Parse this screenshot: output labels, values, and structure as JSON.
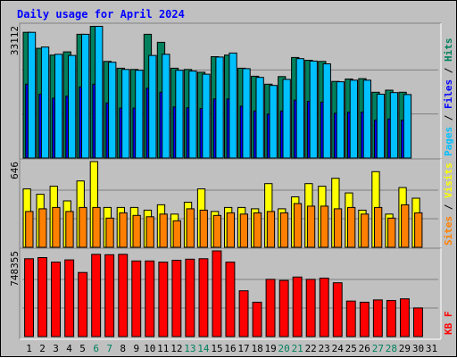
{
  "chart_data": {
    "type": "bar",
    "title": "Daily usage for April 2024",
    "categories": [
      "1",
      "2",
      "3",
      "4",
      "5",
      "6",
      "7",
      "8",
      "9",
      "10",
      "11",
      "12",
      "13",
      "14",
      "15",
      "16",
      "17",
      "18",
      "19",
      "20",
      "21",
      "22",
      "23",
      "24",
      "25",
      "26",
      "27",
      "28",
      "29",
      "30",
      "31"
    ],
    "weekend_days": [
      "6",
      "7",
      "13",
      "14",
      "20",
      "21",
      "27",
      "28"
    ],
    "colors": {
      "hits": "#00805c",
      "files": "#0000ff",
      "pages": "#00c0ff",
      "visits": "#ffff00",
      "sites": "#ff8000",
      "kbf": "#ff0000",
      "weekend_label": "#00805c",
      "weekday_label": "#000000",
      "title": "#0000ff",
      "background": "#c0c0c0"
    },
    "panels": [
      {
        "id": "hits-files-pages",
        "ymax_label": "33112",
        "ymax": 33112,
        "side_labels": [
          {
            "text": "Pages",
            "color": "#00c0ff"
          },
          {
            "text": " / ",
            "color": "#000000"
          },
          {
            "text": "Files",
            "color": "#0000ff"
          },
          {
            "text": " / ",
            "color": "#000000"
          },
          {
            "text": "Hits",
            "color": "#00805c"
          }
        ],
        "series": [
          {
            "name": "Hits",
            "color": "#00805c",
            "values": [
              31500,
              27500,
              25800,
              26600,
              31000,
              33000,
              24200,
              22500,
              22200,
              31000,
              29000,
              22500,
              22200,
              21500,
              25400,
              25800,
              22500,
              20500,
              18500,
              20400,
              25200,
              24500,
              24200,
              19200,
              19800,
              19900,
              16500,
              17000,
              16500,
              0,
              0
            ]
          },
          {
            "name": "Files",
            "color": "#0000ff",
            "values": [
              18500,
              16000,
              15000,
              15500,
              17800,
              18500,
              13800,
              12500,
              12500,
              17500,
              16500,
              12800,
              12600,
              12400,
              14800,
              14800,
              13000,
              11800,
              11000,
              11800,
              14500,
              14200,
              14000,
              11200,
              11500,
              11500,
              9500,
              9800,
              9500,
              0,
              0
            ]
          },
          {
            "name": "Pages",
            "color": "#00c0ff",
            "values": [
              31500,
              27800,
              26000,
              25700,
              31000,
              33000,
              24000,
              22200,
              22000,
              25700,
              26000,
              22000,
              21800,
              21000,
              25300,
              26300,
              22400,
              20200,
              18200,
              19700,
              24900,
              24300,
              23600,
              19100,
              19500,
              19500,
              16000,
              16400,
              15900,
              0,
              0
            ]
          }
        ]
      },
      {
        "id": "visits-sites",
        "ymax_label": "646",
        "ymax": 646,
        "side_labels": [
          {
            "text": "Sites",
            "color": "#ff8000"
          },
          {
            "text": " / ",
            "color": "#000000"
          },
          {
            "text": "Visits",
            "color": "#ffff00"
          }
        ],
        "series": [
          {
            "name": "Visits",
            "color": "#ffff00",
            "values": [
              440,
              400,
              460,
              350,
              500,
              646,
              300,
              300,
              300,
              280,
              320,
              250,
              340,
              440,
              270,
              300,
              300,
              290,
              480,
              290,
              380,
              480,
              460,
              520,
              410,
              280,
              570,
              250,
              450,
              370,
              0
            ]
          },
          {
            "name": "Sites",
            "color": "#ff8000",
            "values": [
              270,
              290,
              300,
              270,
              300,
              300,
              220,
              260,
              240,
              230,
              250,
              200,
              290,
              280,
              240,
              260,
              250,
              260,
              270,
              260,
              330,
              310,
              310,
              290,
              300,
              250,
              300,
              220,
              320,
              260,
              0
            ]
          }
        ]
      },
      {
        "id": "kbf",
        "ymax_label": "748355",
        "ymax": 748355,
        "side_labels": [
          {
            "text": "KB F",
            "color": "#ff0000"
          }
        ],
        "series": [
          {
            "name": "KB F",
            "color": "#ff0000",
            "values": [
              680000,
              690000,
              650000,
              670000,
              560000,
              718000,
              715000,
              718000,
              660000,
              660000,
              650000,
              666000,
              676000,
              680000,
              748355,
              650000,
              400000,
              300000,
              500000,
              490000,
              520000,
              500000,
              510000,
              470000,
              310000,
              300000,
              320000,
              315000,
              330000,
              250000,
              0
            ]
          }
        ]
      }
    ]
  }
}
